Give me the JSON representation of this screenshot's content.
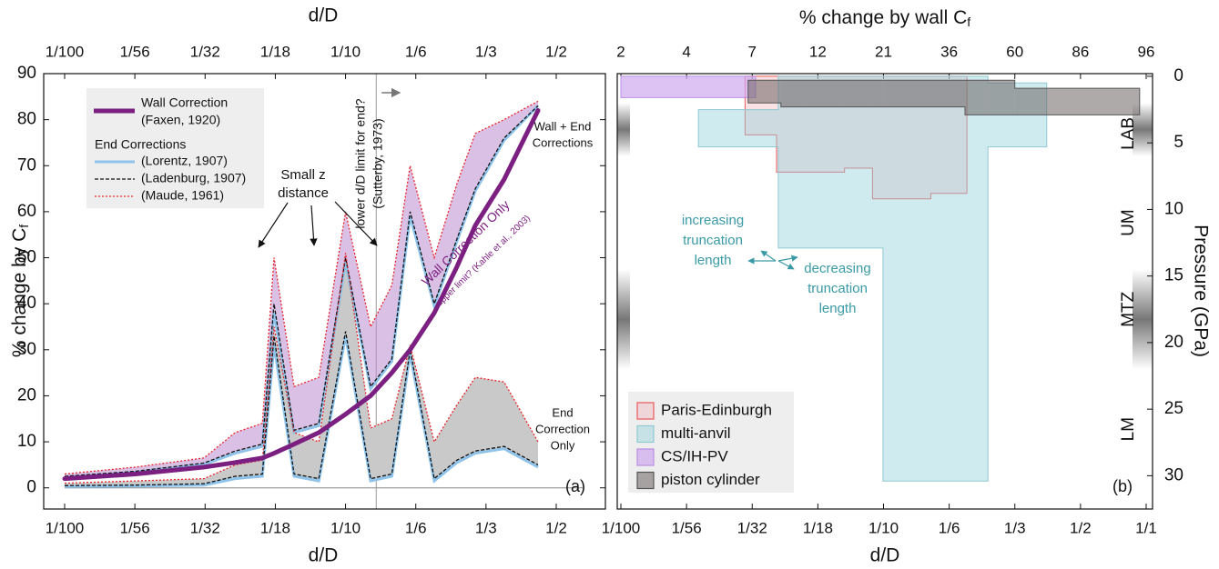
{
  "chart_data": [
    {
      "type": "line",
      "x_label": "d/D",
      "y_label": "% change by C",
      "y_label_sub": "f",
      "panel_label": "(a)",
      "x_scale": "log",
      "x": [
        0.01,
        0.018,
        0.031,
        0.04,
        0.05,
        0.055,
        0.065,
        0.08,
        0.1,
        0.12,
        0.14,
        0.16,
        0.2,
        0.25,
        0.3,
        0.37,
        0.45
      ],
      "xticks": [
        {
          "value": 0.01,
          "label": "1/100"
        },
        {
          "value": 0.0179,
          "label": "1/56"
        },
        {
          "value": 0.03125,
          "label": "1/32"
        },
        {
          "value": 0.0556,
          "label": "1/18"
        },
        {
          "value": 0.1,
          "label": "1/10"
        },
        {
          "value": 0.1667,
          "label": "1/6"
        },
        {
          "value": 0.3333,
          "label": "1/3"
        },
        {
          "value": 0.5,
          "label": "1/2"
        }
      ],
      "ylim": [
        -4.6,
        90
      ],
      "yticks": [
        0,
        10,
        20,
        30,
        40,
        50,
        60,
        70,
        80,
        90
      ],
      "legend": {
        "position": "upper left",
        "headings": [
          "Wall Correction",
          "End Corrections"
        ]
      },
      "series": [
        {
          "name": "(Faxen, 1920)",
          "heading": 0,
          "color": "#7b1f80",
          "width": 5,
          "dash": "none",
          "values": [
            2,
            3,
            4.5,
            5.5,
            6.5,
            7.5,
            9.5,
            12,
            16,
            20,
            25,
            30,
            38,
            48,
            57,
            67,
            82
          ]
        },
        {
          "name": "(Lorentz, 1907)",
          "heading": 1,
          "color": "#8fc3ea",
          "width": 3,
          "dash": "none",
          "values": [
            0.3,
            0.4,
            0.6,
            2,
            2.5,
            31,
            2.5,
            1.5,
            33,
            1.5,
            2.5,
            29,
            1.5,
            5.5,
            7.5,
            8.5,
            4.5
          ]
        },
        {
          "name": "(Ladenburg, 1907)",
          "heading": 1,
          "color": "#111111",
          "width": 1.3,
          "dash": "4 2",
          "values": [
            0.5,
            0.6,
            0.9,
            2.5,
            3,
            33,
            3,
            2,
            34,
            2,
            3,
            30,
            2,
            6,
            8,
            9,
            5
          ]
        },
        {
          "name": "(Maude, 1961)",
          "heading": 1,
          "color": "#e8242a",
          "width": 1.3,
          "dash": "2 2",
          "values": [
            1,
            1.5,
            2,
            5,
            6,
            35,
            12,
            10,
            51,
            13,
            15,
            31,
            10,
            18,
            24,
            23,
            10
          ]
        }
      ],
      "wall_plus_end": {
        "label": [
          "Wall + End",
          "Corrections"
        ],
        "values": [
          [
            2.3,
            3.4,
            5.1,
            7.5,
            9,
            38,
            12,
            13.5,
            49,
            21.5,
            27.5,
            59,
            39.5,
            53.5,
            64.5,
            75.5,
            83
          ],
          [
            2.5,
            3.6,
            5.4,
            8,
            9.5,
            40,
            12.5,
            14,
            50,
            22,
            28,
            60,
            40,
            54,
            65,
            76,
            83
          ],
          [
            3,
            4.5,
            6.5,
            12,
            14,
            50,
            22,
            24,
            60,
            35,
            44,
            70,
            50,
            66,
            77,
            80,
            84
          ]
        ]
      },
      "end_only_label": [
        "End",
        "Correction",
        "Only"
      ],
      "sutterby_limit": 0.125,
      "annotations": {
        "small_z": [
          "Small z",
          "distance"
        ],
        "sutterby": [
          "lower d/D limit for end?",
          "(Sutterby, 1973)"
        ],
        "wall_only": "Wall Correction Only",
        "kahle": "upper limit? (Kahle et al., 2003)"
      }
    },
    {
      "type": "step-area",
      "title": "% change by wall C",
      "title_sub": "f",
      "x_label": "d/D",
      "y_label": "Pressure (GPa)",
      "panel_label": "(b)",
      "xticks": [
        {
          "value": 0.01,
          "label": "1/100"
        },
        {
          "value": 0.0179,
          "label": "1/56"
        },
        {
          "value": 0.03125,
          "label": "1/32"
        },
        {
          "value": 0.0556,
          "label": "1/18"
        },
        {
          "value": 0.1,
          "label": "1/10"
        },
        {
          "value": 0.1667,
          "label": "1/6"
        },
        {
          "value": 0.3333,
          "label": "1/3"
        },
        {
          "value": 0.5,
          "label": "1/2"
        },
        {
          "value": 1,
          "label": "1/1"
        }
      ],
      "x2ticks": [
        2,
        4,
        7,
        12,
        21,
        36,
        60,
        86,
        96
      ],
      "ylim": [
        -0.2,
        32.5
      ],
      "y_inverted": true,
      "yticks": [
        0,
        5,
        10,
        15,
        20,
        25,
        30
      ],
      "legend": {
        "position": "lower left"
      },
      "series": [
        {
          "name": "Paris-Edinburgh",
          "color": "#e8595c",
          "fill": "rgba(240,170,175,0.35)",
          "x_edges": [
            0.0294,
            0.0387,
            0.05,
            0.0706,
            0.0906,
            0.1445,
            0.201
          ],
          "values": [
            4.4,
            7.2,
            7.2,
            6.9,
            9.2,
            8.8
          ],
          "values_min": [
            0,
            0,
            0,
            0,
            0,
            0
          ]
        },
        {
          "name": "multi-anvil",
          "color": "#8fc9d1",
          "fill": "rgba(150,210,220,0.45)",
          "x_edges": [
            0.0198,
            0.0393,
            0.0995,
            0.251,
            0.406
          ],
          "values": [
            5.3,
            12.9,
            30.4,
            5.3
          ],
          "values_min": [
            2.5,
            0,
            0,
            0.5
          ]
        },
        {
          "name": "CS/IH-PV",
          "color": "#b98ee0",
          "fill": "rgba(205,170,240,0.7)",
          "x_edges": [
            0.01,
            0.0322
          ],
          "values": [
            1.6
          ],
          "values_min": [
            0
          ]
        },
        {
          "name": "piston cylinder",
          "color": "#555555",
          "fill": "rgba(110,100,100,0.55)",
          "x_edges": [
            0.0302,
            0.0402,
            0.0995,
            0.197,
            0.333,
            0.933
          ],
          "values": [
            2.0,
            2.3,
            2.3,
            2.9,
            2.9
          ],
          "values_min": [
            0.3,
            0.3,
            0.3,
            0.3,
            0.9
          ]
        }
      ],
      "layers": [
        {
          "label": "LAB",
          "pressure": 4.3
        },
        {
          "label": "UM",
          "pressure": 11
        },
        {
          "label": "MTZ",
          "pressure": 17.5
        },
        {
          "label": "LM",
          "pressure": 26.5
        }
      ],
      "layer_shading": [
        [
          2,
          6
        ],
        [
          14.5,
          22
        ]
      ],
      "annotations": {
        "increasing": [
          "increasing",
          "truncation",
          "length"
        ],
        "decreasing": [
          "decreasing",
          "truncation",
          "length"
        ]
      }
    }
  ]
}
